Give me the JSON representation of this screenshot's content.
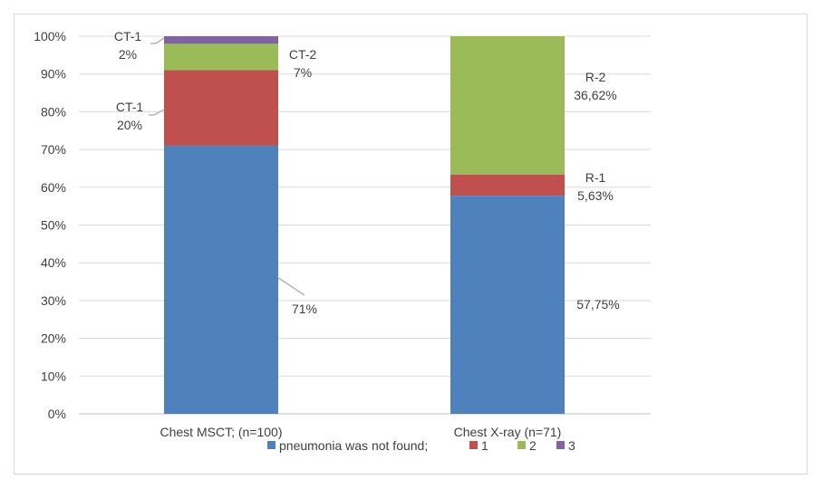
{
  "chart_data": {
    "type": "bar",
    "stacked": true,
    "categories": [
      "Chest MSCT; (n=100)",
      "Chest X-ray (n=71)"
    ],
    "series": [
      {
        "name": "pneumonia was not found;",
        "values": [
          71,
          57.75
        ],
        "color": "#4f81bd"
      },
      {
        "name": "1",
        "values": [
          20,
          5.63
        ],
        "color": "#c0504d"
      },
      {
        "name": "2",
        "values": [
          7,
          36.62
        ],
        "color": "#9bbb59"
      },
      {
        "name": "3",
        "values": [
          2,
          0
        ],
        "color": "#8064a2"
      }
    ],
    "ylim": [
      0,
      100
    ],
    "yticks": [
      "0%",
      "10%",
      "20%",
      "30%",
      "40%",
      "50%",
      "60%",
      "70%",
      "80%",
      "90%",
      "100%"
    ],
    "grid": true,
    "legend_position": "bottom",
    "annotations": [
      {
        "category": 0,
        "series": 0,
        "lines": [
          "71%"
        ]
      },
      {
        "category": 0,
        "series": 1,
        "lines": [
          "CT-1",
          "20%"
        ]
      },
      {
        "category": 0,
        "series": 2,
        "lines": [
          "CT-2",
          "7%"
        ]
      },
      {
        "category": 0,
        "series": 3,
        "lines": [
          "CT-1",
          "2%"
        ]
      },
      {
        "category": 1,
        "series": 0,
        "lines": [
          "57,75%"
        ]
      },
      {
        "category": 1,
        "series": 1,
        "lines": [
          "R-1",
          "5,63%"
        ]
      },
      {
        "category": 1,
        "series": 2,
        "lines": [
          "R-2",
          "36,62%"
        ]
      }
    ]
  }
}
